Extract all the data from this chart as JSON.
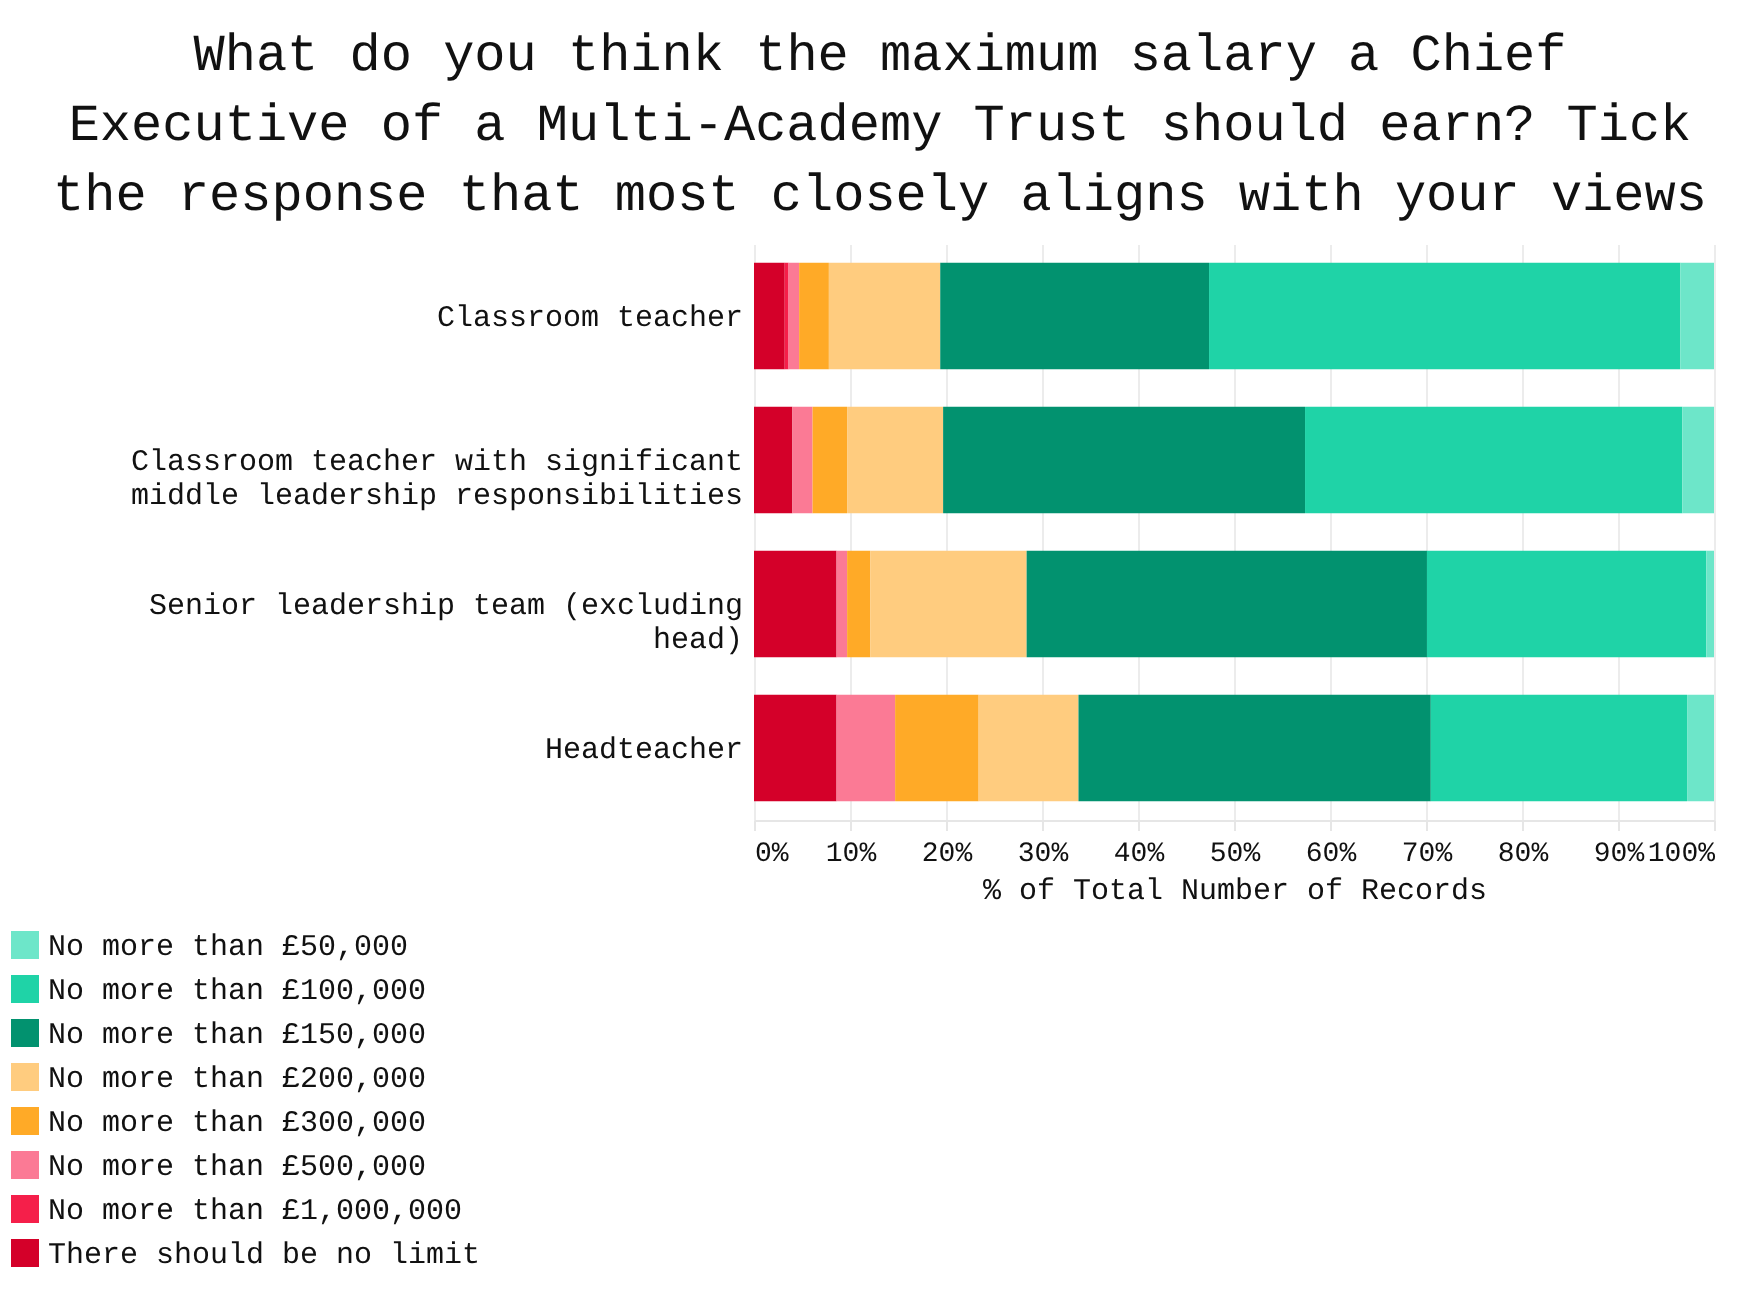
{
  "chart_data": {
    "type": "bar",
    "orientation": "horizontal",
    "stacked": true,
    "title": "What do you think the maximum salary a Chief Executive of a Multi-Academy Trust should earn? Tick the response that most closely aligns with your views",
    "xlabel": "% of Total Number of Records",
    "categories": [
      "Classroom teacher",
      "Classroom teacher with significant middle leadership responsibilities",
      "Senior leadership team (excluding head)",
      "Headteacher"
    ],
    "series": [
      {
        "name": "There should be no limit",
        "color": "#d40029",
        "values": [
          3.2,
          4.0,
          8.6,
          8.6
        ]
      },
      {
        "name": "No more than £1,000,000",
        "color": "#f51f4a",
        "values": [
          0.4,
          0,
          0,
          0
        ]
      },
      {
        "name": "No more than £500,000",
        "color": "#fb7a95",
        "values": [
          1.1,
          2.1,
          1.1,
          6.1
        ]
      },
      {
        "name": "No more than £300,000",
        "color": "#ffaa27",
        "values": [
          3.1,
          3.6,
          2.4,
          8.7
        ]
      },
      {
        "name": "No more than £200,000",
        "color": "#ffcc7f",
        "values": [
          11.6,
          10.0,
          16.3,
          10.4
        ]
      },
      {
        "name": "No more than £150,000",
        "color": "#02926f",
        "values": [
          28.0,
          37.7,
          41.7,
          36.7
        ]
      },
      {
        "name": "No more than £100,000",
        "color": "#1fd3a7",
        "values": [
          49.1,
          39.3,
          29.1,
          26.7
        ]
      },
      {
        "name": "No more than £50,000",
        "color": "#6de6c9",
        "values": [
          3.5,
          3.3,
          0.8,
          2.8
        ]
      }
    ],
    "xlim": [
      0,
      100
    ],
    "xticks": [
      {
        "value": 0,
        "label": "0%"
      },
      {
        "value": 10,
        "label": "10%"
      },
      {
        "value": 20,
        "label": "20%"
      },
      {
        "value": 30,
        "label": "30%"
      },
      {
        "value": 40,
        "label": "40%"
      },
      {
        "value": 50,
        "label": "50%"
      },
      {
        "value": 60,
        "label": "60%"
      },
      {
        "value": 70,
        "label": "70%"
      },
      {
        "value": 80,
        "label": "80%"
      },
      {
        "value": 90,
        "label": "90%"
      },
      {
        "value": 100,
        "label": "100%"
      }
    ],
    "grid": "x",
    "legend": "bottom left"
  }
}
